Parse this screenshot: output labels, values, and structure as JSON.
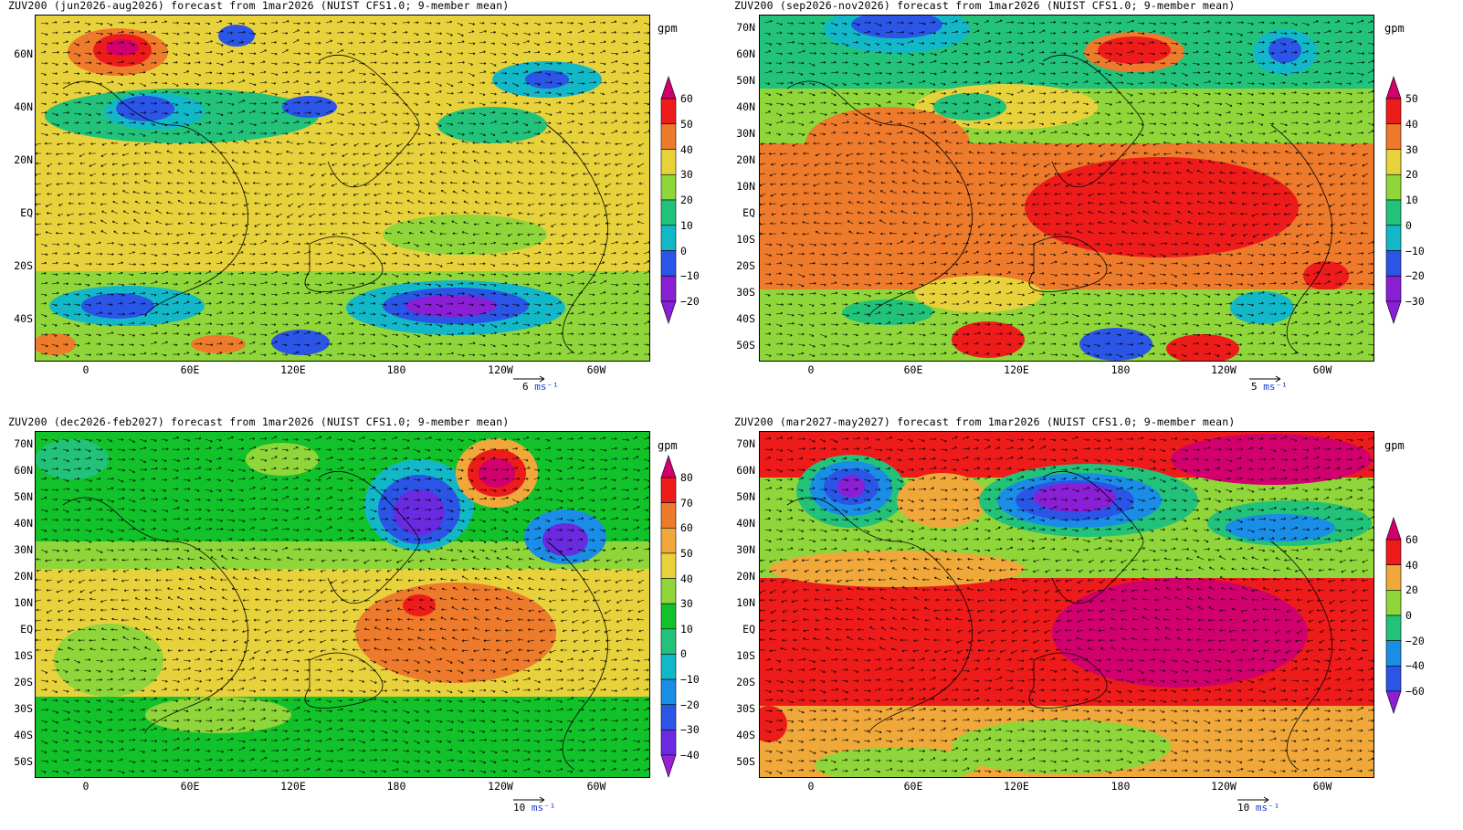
{
  "unit": "gpm",
  "lat_labels": [
    "70N",
    "60N",
    "50N",
    "40N",
    "30N",
    "20N",
    "10N",
    "EQ",
    "10S",
    "20S",
    "30S",
    "40S",
    "50S"
  ],
  "lon_labels": [
    "0",
    "60E",
    "120E",
    "180",
    "120W",
    "60W"
  ],
  "panels": [
    {
      "title": "ZUV200 (jun2026-aug2026) forecast from 1mar2026 (NUIST CFS1.0; 9-member mean)",
      "ref_vector": {
        "value": "6",
        "unit": "ms⁻¹"
      },
      "colorbar": {
        "labels": [
          "60",
          "50",
          "40",
          "30",
          "20",
          "10",
          "0",
          "−10",
          "−20"
        ],
        "colors": [
          "#d1006d",
          "#ee1b1b",
          "#ee7a2b",
          "#e8d23c",
          "#8fd63a",
          "#22c27a",
          "#12b8c8",
          "#2a55e6",
          "#8a1fd6",
          "#8a1fd6"
        ]
      }
    },
    {
      "title": "ZUV200 (sep2026-nov2026) forecast from 1mar2026 (NUIST CFS1.0; 9-member mean)",
      "ref_vector": {
        "value": "5",
        "unit": "ms⁻¹"
      },
      "colorbar": {
        "labels": [
          "50",
          "40",
          "30",
          "20",
          "10",
          "0",
          "−10",
          "−20",
          "−30"
        ],
        "colors": [
          "#d1006d",
          "#ee1b1b",
          "#ee7a2b",
          "#e8d23c",
          "#8fd63a",
          "#22c27a",
          "#12b8c8",
          "#2a55e6",
          "#8a1fd6",
          "#8a1fd6"
        ]
      }
    },
    {
      "title": "ZUV200 (dec2026-feb2027) forecast from 1mar2026 (NUIST CFS1.0; 9-member mean)",
      "ref_vector": {
        "value": "10",
        "unit": "ms⁻¹"
      },
      "colorbar": {
        "labels": [
          "80",
          "70",
          "60",
          "50",
          "40",
          "30",
          "10",
          "0",
          "−10",
          "−20",
          "−30",
          "−40"
        ],
        "colors": [
          "#d1006d",
          "#ee1b1b",
          "#ee7a2b",
          "#f0a83a",
          "#e8d23c",
          "#8fd63a",
          "#12c22a",
          "#22c27a",
          "#12b8c8",
          "#1a8de6",
          "#2a55e6",
          "#6a2ae0",
          "#9a1fd6"
        ]
      }
    },
    {
      "title": "ZUV200 (mar2027-may2027) forecast from 1mar2026 (NUIST CFS1.0; 9-member mean)",
      "ref_vector": {
        "value": "10",
        "unit": "ms⁻¹"
      },
      "colorbar": {
        "labels": [
          "60",
          "40",
          "20",
          "0",
          "−20",
          "−40",
          "−60"
        ],
        "colors": [
          "#d1006d",
          "#ee1b1b",
          "#f0a83a",
          "#8fd63a",
          "#22c27a",
          "#1a8de6",
          "#2a55e6",
          "#8a1fd6"
        ]
      }
    }
  ]
}
